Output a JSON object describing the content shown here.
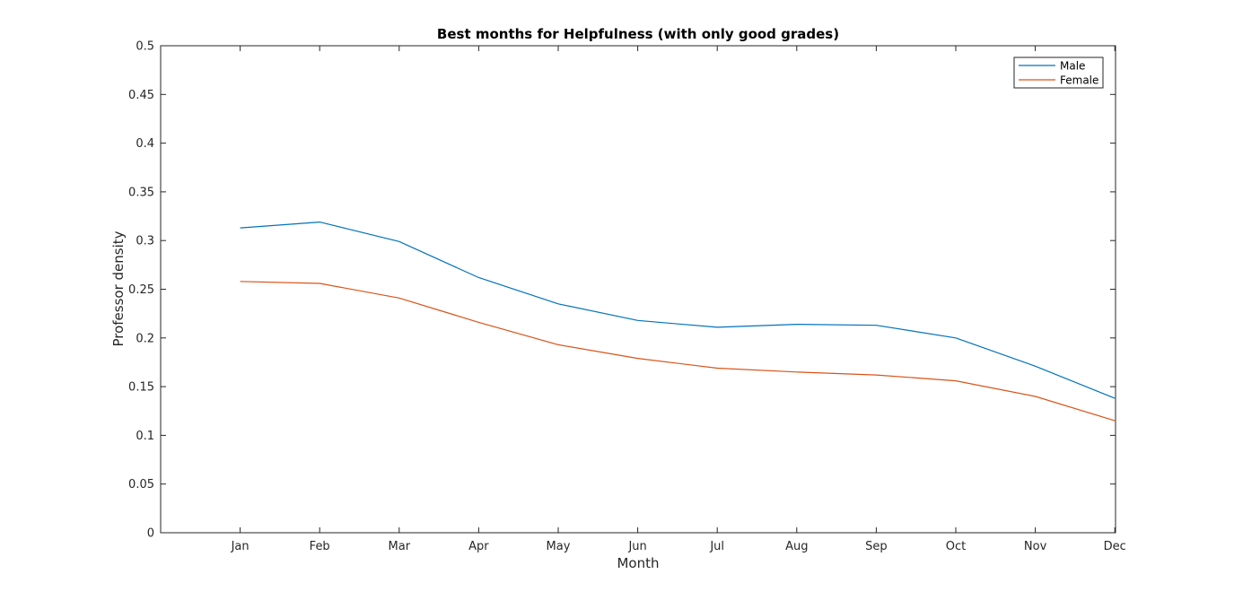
{
  "chart_data": {
    "type": "line",
    "title": "Best months for Helpfulness (with only good grades)",
    "xlabel": "Month",
    "ylabel": "Professor density",
    "categories": [
      "Jan",
      "Feb",
      "Mar",
      "Apr",
      "May",
      "Jun",
      "Jul",
      "Aug",
      "Sep",
      "Oct",
      "Nov",
      "Dec"
    ],
    "ylim": [
      0,
      0.5
    ],
    "yticks": [
      "0",
      "0.05",
      "0.1",
      "0.15",
      "0.2",
      "0.25",
      "0.3",
      "0.35",
      "0.4",
      "0.45",
      "0.5"
    ],
    "series": [
      {
        "name": "Male",
        "color": "#0072bd",
        "values": [
          0.313,
          0.319,
          0.299,
          0.262,
          0.235,
          0.218,
          0.211,
          0.214,
          0.213,
          0.2,
          0.171,
          0.138
        ]
      },
      {
        "name": "Female",
        "color": "#d95319",
        "values": [
          0.258,
          0.256,
          0.241,
          0.216,
          0.193,
          0.179,
          0.169,
          0.165,
          0.162,
          0.156,
          0.14,
          0.115
        ]
      }
    ],
    "grid": false,
    "legend_position": "top-right"
  }
}
